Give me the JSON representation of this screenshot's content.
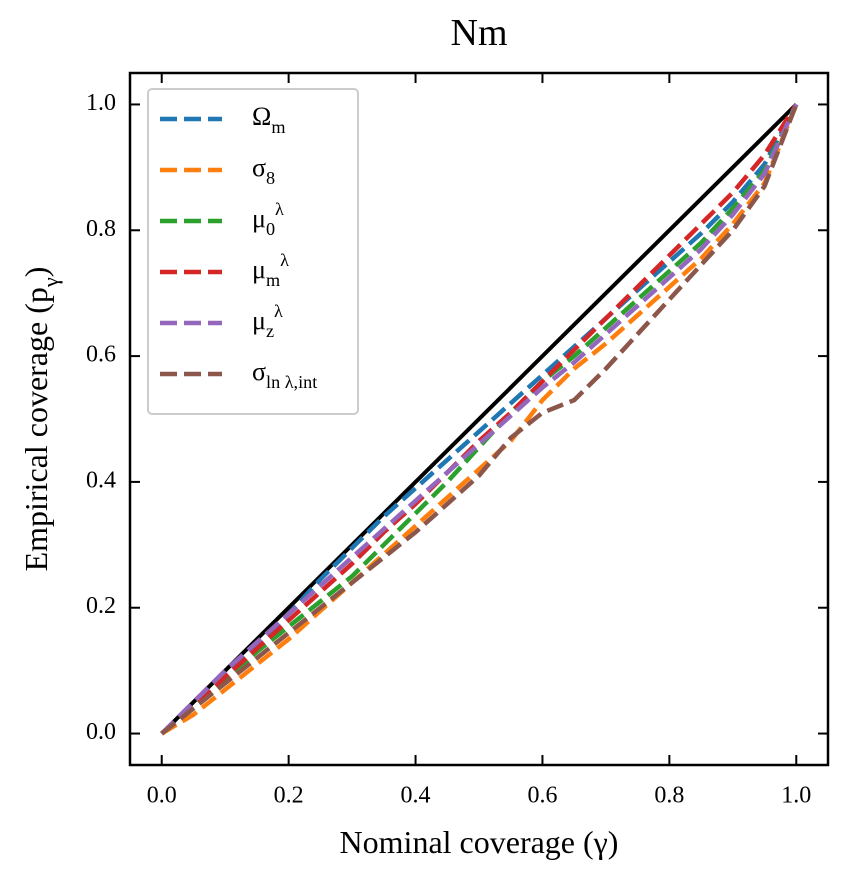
{
  "chart_data": {
    "type": "line",
    "title": "Nm",
    "xlabel": "Nominal coverage (γ)",
    "ylabel": "Empirical coverage (p_{γ})",
    "xlim": [
      -0.05,
      1.05
    ],
    "ylim": [
      -0.05,
      1.05
    ],
    "xticks": [
      {
        "value": 0,
        "label": "0.0"
      },
      0.2,
      0.4,
      0.6,
      0.8,
      {
        "value": 1,
        "label": "1.0"
      }
    ],
    "yticks": [
      {
        "value": 0,
        "label": "0.0"
      },
      0.2,
      0.4,
      0.6,
      0.8,
      {
        "value": 1,
        "label": "1.0"
      }
    ],
    "legend": "upper left",
    "reference_line": {
      "x": [
        0,
        1
      ],
      "y": [
        0,
        1
      ],
      "color": "#000000"
    },
    "x": [
      0,
      0.05,
      0.1,
      0.15,
      0.2,
      0.25,
      0.3,
      0.35,
      0.4,
      0.45,
      0.5,
      0.55,
      0.6,
      0.65,
      0.7,
      0.75,
      0.8,
      0.85,
      0.9,
      0.95,
      1
    ],
    "series": [
      {
        "name": "Ω_{m}",
        "color": "#1f77b4",
        "values": [
          0,
          0.045,
          0.095,
          0.14,
          0.19,
          0.245,
          0.295,
          0.345,
          0.39,
          0.435,
          0.48,
          0.525,
          0.57,
          0.615,
          0.66,
          0.705,
          0.75,
          0.795,
          0.845,
          0.905,
          1.0
        ]
      },
      {
        "name": "σ_{8}",
        "color": "#ff7f0e",
        "values": [
          0,
          0.03,
          0.07,
          0.11,
          0.15,
          0.195,
          0.24,
          0.285,
          0.33,
          0.375,
          0.42,
          0.465,
          0.53,
          0.58,
          0.62,
          0.665,
          0.71,
          0.755,
          0.81,
          0.875,
          1.0
        ]
      },
      {
        "name": "μ_{0}^{λ}",
        "color": "#2ca02c",
        "values": [
          0,
          0.04,
          0.085,
          0.13,
          0.17,
          0.21,
          0.25,
          0.3,
          0.35,
          0.4,
          0.455,
          0.51,
          0.56,
          0.6,
          0.645,
          0.69,
          0.735,
          0.78,
          0.835,
          0.895,
          1.0
        ]
      },
      {
        "name": "μ_{m}^{λ}",
        "color": "#d62728",
        "values": [
          0,
          0.045,
          0.09,
          0.135,
          0.18,
          0.225,
          0.27,
          0.32,
          0.365,
          0.415,
          0.465,
          0.51,
          0.56,
          0.61,
          0.66,
          0.71,
          0.76,
          0.81,
          0.86,
          0.92,
          1.0
        ]
      },
      {
        "name": "μ_{z}^{λ}",
        "color": "#9467bd",
        "values": [
          0,
          0.05,
          0.1,
          0.145,
          0.19,
          0.235,
          0.28,
          0.325,
          0.37,
          0.415,
          0.46,
          0.505,
          0.55,
          0.59,
          0.635,
          0.68,
          0.725,
          0.77,
          0.825,
          0.89,
          1.0
        ]
      },
      {
        "name": "σ_{ln λ,int}",
        "color": "#8c564b",
        "values": [
          0,
          0.04,
          0.08,
          0.12,
          0.16,
          0.2,
          0.24,
          0.28,
          0.32,
          0.365,
          0.41,
          0.47,
          0.51,
          0.53,
          0.58,
          0.635,
          0.69,
          0.745,
          0.8,
          0.87,
          1.0
        ]
      }
    ]
  }
}
